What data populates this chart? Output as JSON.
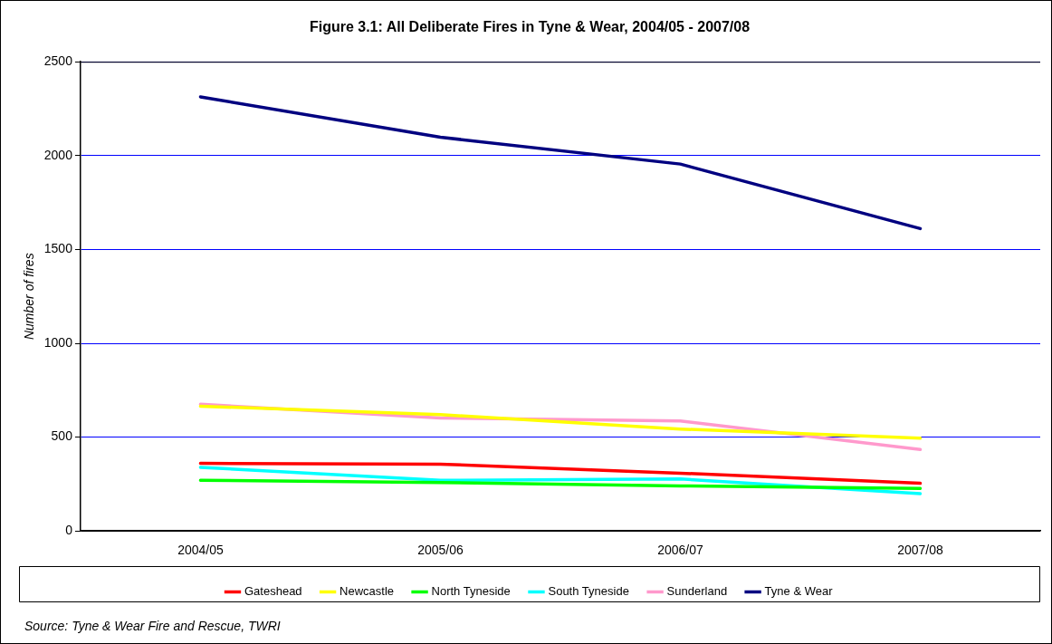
{
  "chart_data": {
    "type": "line",
    "title": "Figure 3.1: All Deliberate Fires in Tyne & Wear, 2004/05 - 2007/08",
    "ylabel": "Number of fires",
    "annotations": [
      "Source: Tyne & Wear Fire and Rescue, TWRI"
    ],
    "categories": [
      "2004/05",
      "2005/06",
      "2006/07",
      "2007/08"
    ],
    "series": [
      {
        "name": "Gateshead",
        "color": "#ff0000",
        "values": [
          360,
          356,
          308,
          254
        ]
      },
      {
        "name": "Newcastle",
        "color": "#ffff00",
        "values": [
          665,
          620,
          543,
          494
        ]
      },
      {
        "name": "North Tyneside",
        "color": "#00ff00",
        "values": [
          270,
          258,
          240,
          227
        ]
      },
      {
        "name": "South Tyneside",
        "color": "#00ffff",
        "values": [
          339,
          270,
          277,
          199
        ]
      },
      {
        "name": "Sunderland",
        "color": "#ff99cc",
        "values": [
          675,
          602,
          586,
          434
        ]
      },
      {
        "name": "Tyne & Wear",
        "color": "#000080",
        "values": [
          2313,
          2098,
          1955,
          1611
        ]
      }
    ],
    "ylim": [
      0,
      2500
    ],
    "yticks": [
      0,
      500,
      1000,
      1500,
      2000,
      2500
    ],
    "grid": "y",
    "legend": "bottom",
    "marker": "none",
    "line_style": "solid"
  }
}
